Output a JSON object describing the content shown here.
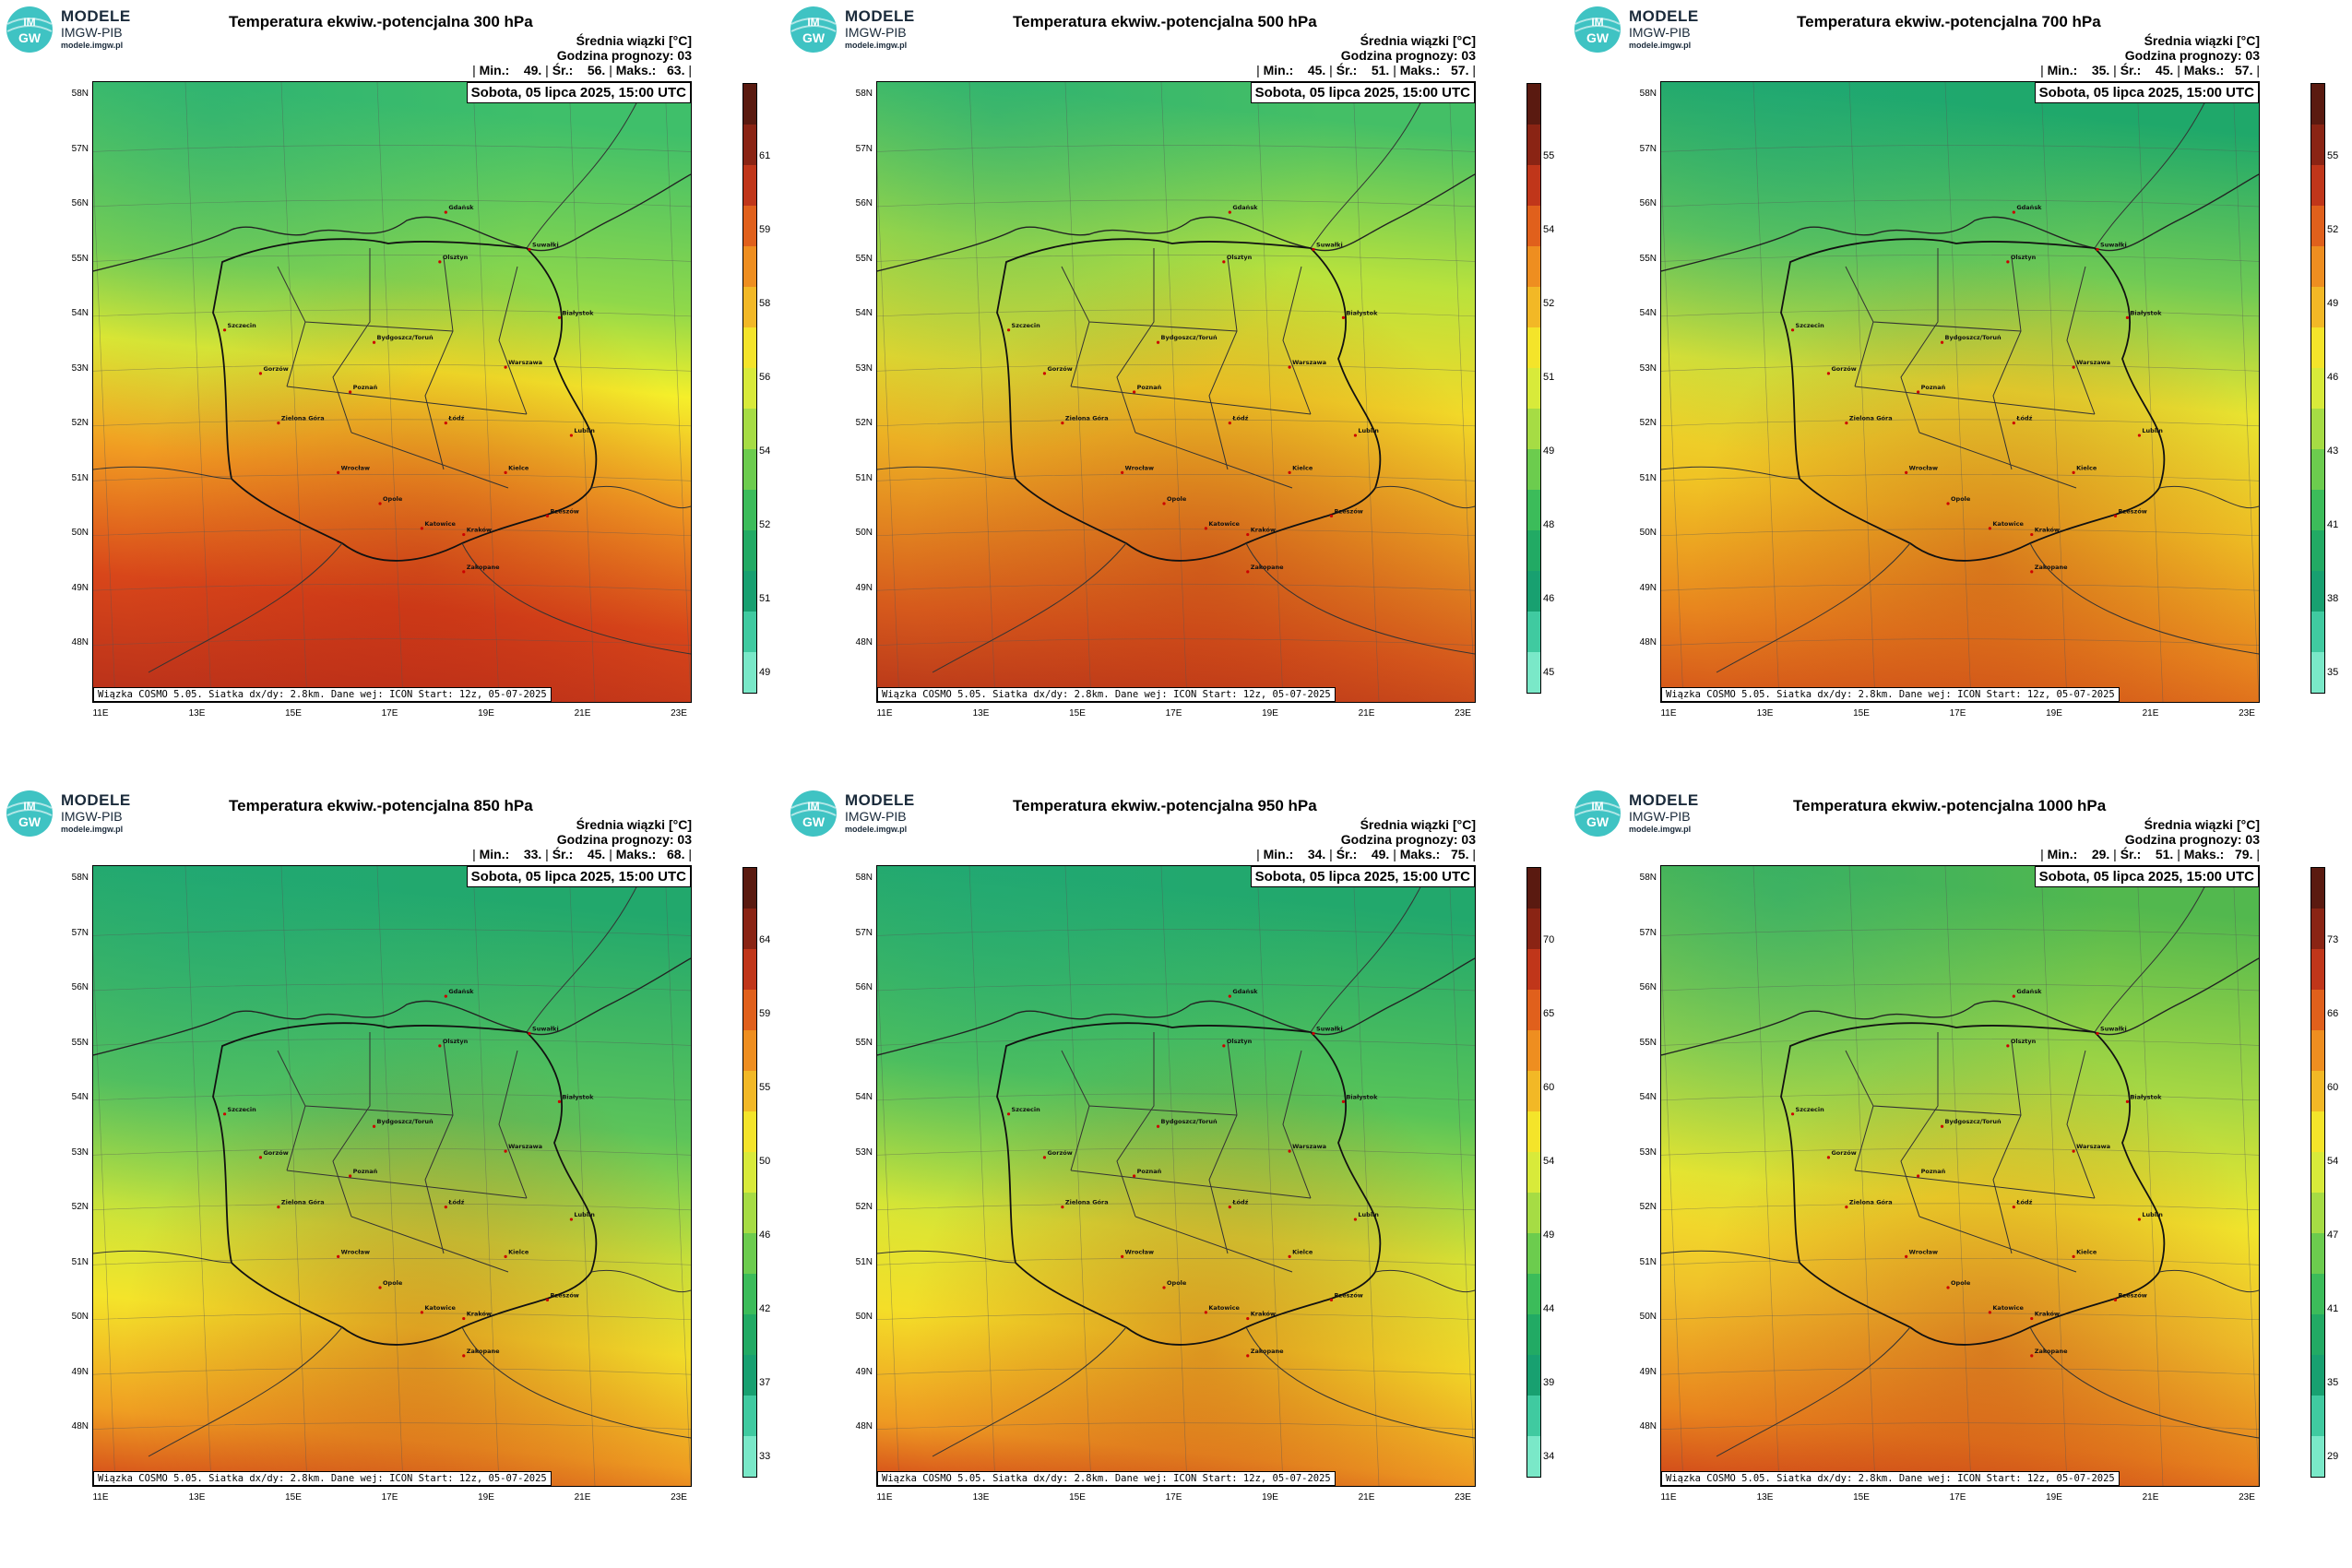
{
  "logo": {
    "line1": "MODELE",
    "line2": "IMGW-PIB",
    "line3": "modele.imgw.pl",
    "mark": "IM GW"
  },
  "common": {
    "info1": "Średnia wiązki [°C]",
    "info2": "Godzina prognozy: 03",
    "date": "Sobota, 05 lipca 2025, 15:00 UTC",
    "footer": "Wiązka COSMO 5.05. Siatka dx/dy: 2.8km. Dane wej: ICON Start: 12z, 05-07-2025",
    "lat_labels": [
      "58N",
      "57N",
      "56N",
      "55N",
      "54N",
      "53N",
      "52N",
      "51N",
      "50N",
      "49N",
      "48N"
    ],
    "lon_labels": [
      "11E",
      "13E",
      "15E",
      "17E",
      "19E",
      "21E",
      "23E"
    ],
    "min_label": "Min.:",
    "mean_label": "Śr.:",
    "max_label": "Maks.:",
    "cities": [
      "Gdańsk",
      "Olsztyn",
      "Suwałki",
      "Szczecin",
      "Bydgoszcz/Toruń",
      "Białystok",
      "Gorzów",
      "Poznań",
      "Warszawa",
      "Zielona Góra",
      "Łódź",
      "Lublin",
      "Wrocław",
      "Kielce",
      "Opole",
      "Katowice",
      "Kraków",
      "Rzeszów",
      "Zakopane"
    ]
  },
  "panels": [
    {
      "title": "Temperatura ekwiw.-potencjalna 300 hPa",
      "min": "49.",
      "mean": "56.",
      "max": "63.",
      "scale": [
        "61",
        "59",
        "58",
        "56",
        "54",
        "52",
        "51",
        "49"
      ],
      "palette": "hot"
    },
    {
      "title": "Temperatura ekwiw.-potencjalna 500 hPa",
      "min": "45.",
      "mean": "51.",
      "max": "57.",
      "scale": [
        "55",
        "54",
        "52",
        "51",
        "49",
        "48",
        "46",
        "45"
      ],
      "palette": "warm"
    },
    {
      "title": "Temperatura ekwiw.-potencjalna 700 hPa",
      "min": "35.",
      "mean": "45.",
      "max": "57.",
      "scale": [
        "55",
        "52",
        "49",
        "46",
        "43",
        "41",
        "38",
        "35"
      ],
      "palette": "mixed"
    },
    {
      "title": "Temperatura ekwiw.-potencjalna 850 hPa",
      "min": "33.",
      "mean": "45.",
      "max": "68.",
      "scale": [
        "64",
        "59",
        "55",
        "50",
        "46",
        "42",
        "37",
        "33"
      ],
      "palette": "cool"
    },
    {
      "title": "Temperatura ekwiw.-potencjalna 950 hPa",
      "min": "34.",
      "mean": "49.",
      "max": "75.",
      "scale": [
        "70",
        "65",
        "60",
        "54",
        "49",
        "44",
        "39",
        "34"
      ],
      "palette": "cool2"
    },
    {
      "title": "Temperatura ekwiw.-potencjalna 1000 hPa",
      "min": "29.",
      "mean": "51.",
      "max": "79.",
      "scale": [
        "73",
        "66",
        "60",
        "54",
        "47",
        "41",
        "35",
        "29"
      ],
      "palette": "yellow"
    }
  ]
}
